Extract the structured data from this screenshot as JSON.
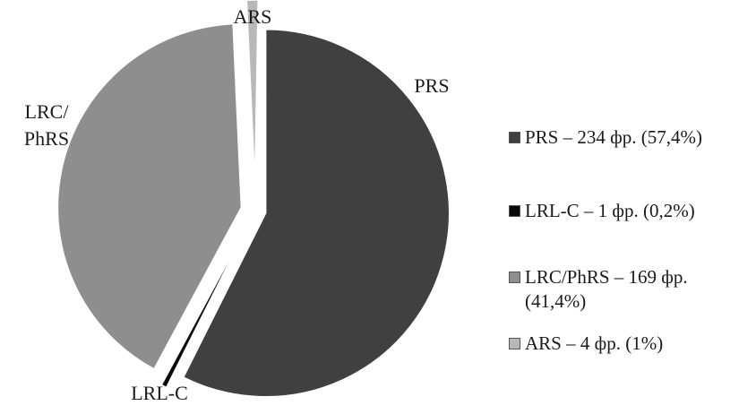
{
  "chart_data": {
    "type": "pie",
    "slices": [
      {
        "key": "prs",
        "label": "PRS",
        "value": 57.4,
        "count": 234,
        "color": "#404040"
      },
      {
        "key": "lrlc",
        "label": "LRL-C",
        "value": 0.2,
        "count": 1,
        "color": "#0a0a0a"
      },
      {
        "key": "lrc",
        "label": "LRC/\nPhRS",
        "value": 41.4,
        "count": 169,
        "color": "#8e8e8e"
      },
      {
        "key": "ars",
        "label": "ARS",
        "value": 1.0,
        "count": 4,
        "color": "#b8b8b8"
      }
    ],
    "legend": {
      "placement": "right",
      "entries": [
        "PRS – 234 фр. (57,4%)",
        "LRL-C – 1 фр. (0,2%)",
        "LRC/PhRS – 169 фр. (41,4%)",
        "ARS – 4 фр. (1%)"
      ]
    }
  }
}
